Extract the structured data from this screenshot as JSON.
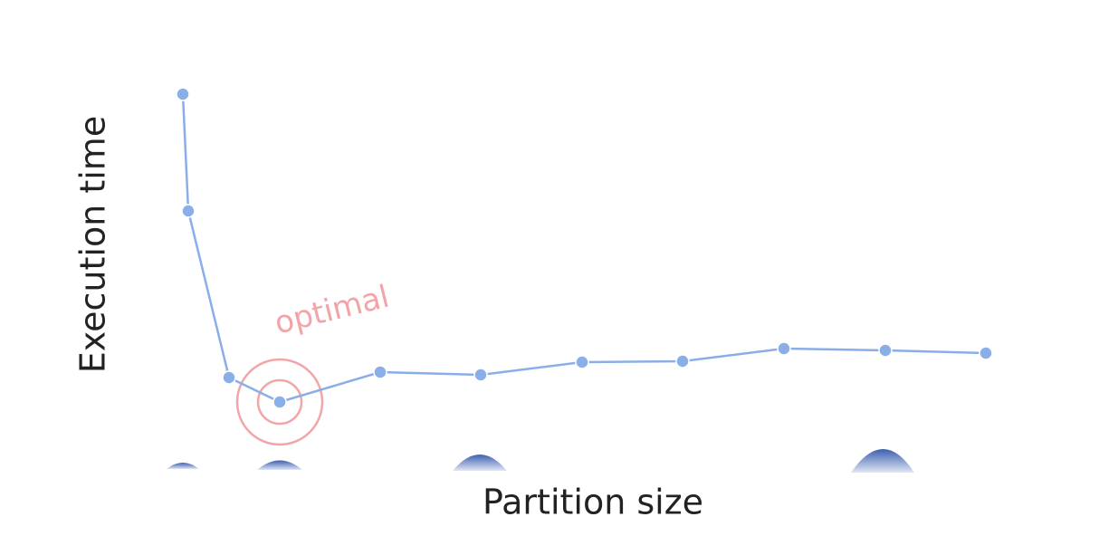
{
  "chart_data": {
    "type": "line",
    "x_label": "Partition size",
    "y_label": "Execution time",
    "x": [
      22,
      28,
      73,
      129,
      240,
      351,
      463,
      574,
      686,
      798,
      909
    ],
    "series": [
      {
        "name": "Execution time",
        "color": "#8aaee8",
        "values": [
          416,
          287,
          103,
          76,
          109,
          106,
          120,
          121,
          135,
          133,
          130
        ]
      }
    ],
    "xlim": [
      0,
      1055
    ],
    "ylim": [
      0,
      520
    ],
    "annotations": [
      {
        "text": "optimal",
        "x": 129,
        "y": 76,
        "color": "#f2a5a8"
      }
    ]
  }
}
